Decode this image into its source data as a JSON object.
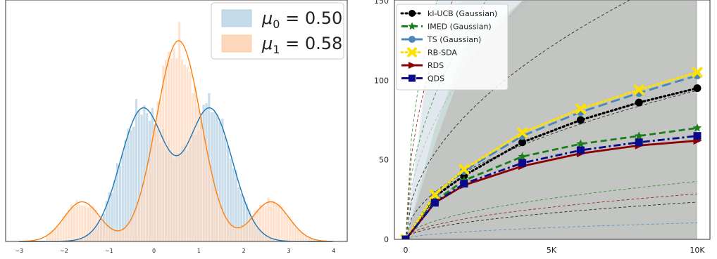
{
  "chart_data": [
    {
      "type": "histogram",
      "title": "",
      "xlabel": "",
      "ylabel": "",
      "xlim": [
        -3.3,
        4.3
      ],
      "x_tick_labels": [
        "−3",
        "−2",
        "−1",
        "0",
        "1",
        "2",
        "3",
        "4"
      ],
      "legend_placement": "top-right",
      "series": [
        {
          "name": "μ0 = 0.50",
          "legend_label": {
            "base": "μ",
            "sub": "0",
            "rest": " = 0.50"
          },
          "color": "#1f77b4",
          "fill": "#c6dbea",
          "distribution": "bimodal",
          "modes": [
            {
              "mean": -0.25,
              "sd": 0.5,
              "weight": 0.5
            },
            {
              "mean": 1.25,
              "sd": 0.5,
              "weight": 0.5
            }
          ]
        },
        {
          "name": "μ1 = 0.58",
          "legend_label": {
            "base": "μ",
            "sub": "1",
            "rest": " = 0.58"
          },
          "color": "#ff7f0e",
          "fill": "#fdd8bd",
          "distribution": "trimodal",
          "modes": [
            {
              "mean": -1.6,
              "sd": 0.4,
              "weight": 0.12
            },
            {
              "mean": 0.55,
              "sd": 0.5,
              "weight": 0.76
            },
            {
              "mean": 2.6,
              "sd": 0.4,
              "weight": 0.12
            }
          ]
        }
      ]
    },
    {
      "type": "line",
      "title": "",
      "xlabel": "",
      "ylabel": "",
      "xlim": [
        0,
        10000
      ],
      "ylim": [
        0,
        150
      ],
      "x_ticks": [
        0,
        5000,
        10000
      ],
      "x_tick_labels": [
        "0",
        "5K",
        "10K"
      ],
      "y_ticks": [
        0,
        50,
        100,
        150
      ],
      "y_tick_labels": [
        "0",
        "50",
        "100",
        "150"
      ],
      "legend_placement": "top-left",
      "x": [
        0,
        1000,
        2000,
        4000,
        6000,
        8000,
        10000
      ],
      "series": [
        {
          "name": "kl-UCB (Gaussian)",
          "color": "#000000",
          "dash": "dotted",
          "marker": "circle",
          "values": [
            0,
            27,
            40,
            61,
            75,
            86,
            95
          ]
        },
        {
          "name": "IMED (Gaussian)",
          "color": "#1a7f1a",
          "dash": "dashed",
          "marker": "star",
          "values": [
            0,
            24,
            37,
            52,
            60,
            65,
            70
          ]
        },
        {
          "name": "TS (Gaussian)",
          "color": "#4a88bb",
          "dash": "longdash",
          "marker": "circle",
          "values": [
            0,
            28,
            43,
            65,
            80,
            92,
            103
          ]
        },
        {
          "name": "RB-SDA",
          "color": "#ffe000",
          "dash": "dotted",
          "marker": "x",
          "values": [
            0,
            28,
            44,
            67,
            82,
            94,
            105
          ]
        },
        {
          "name": "RDS",
          "color": "#8b0000",
          "dash": "solid",
          "marker": "triangle-right",
          "values": [
            0,
            23,
            34,
            46,
            54,
            59,
            62
          ]
        },
        {
          "name": "QDS",
          "color": "#0a0a8a",
          "dash": "dashdot",
          "marker": "square",
          "values": [
            0,
            23,
            35,
            48,
            56,
            61,
            65
          ]
        }
      ],
      "quantile_bands": [
        {
          "color": "#1a7f1a",
          "upper": [
            0,
            70,
            120,
            150,
            150,
            150,
            150
          ]
        },
        {
          "color": "#8b0000",
          "upper": [
            0,
            60,
            110,
            150,
            150,
            150,
            150
          ]
        },
        {
          "color": "#4a88bb",
          "upper": [
            0,
            150,
            150,
            150,
            150,
            150,
            150
          ]
        },
        {
          "color": "#b0b0b0",
          "upper": [
            0,
            140,
            150,
            150,
            150,
            150,
            150
          ]
        }
      ]
    }
  ]
}
